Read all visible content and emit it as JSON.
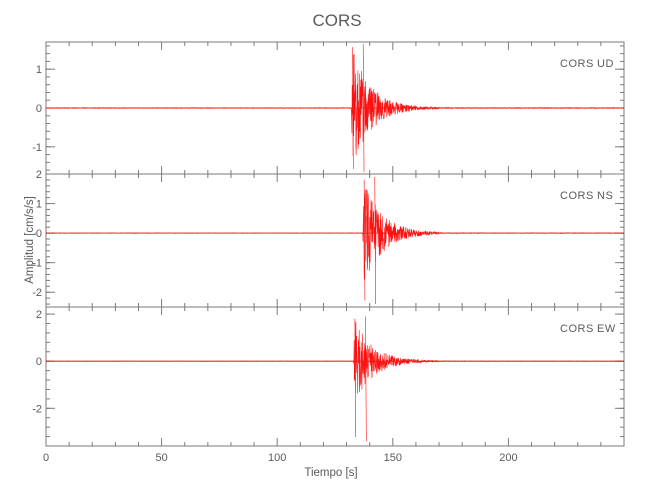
{
  "chart_data": {
    "type": "line",
    "title": "CORS",
    "xlabel": "Tiempo [s]",
    "ylabel": "Amplitud [cm/s/s]",
    "xlim": [
      0,
      250
    ],
    "x_ticks": [
      "0",
      "50",
      "100",
      "150",
      "200"
    ],
    "x_tick_values": [
      0,
      50,
      100,
      150,
      200
    ],
    "grid": false,
    "panels": [
      {
        "station": "CORS",
        "component": "UD",
        "ylim": [
          -1.7,
          1.7
        ],
        "y_ticks": [
          "-1",
          "0",
          "1"
        ],
        "y_tick_values": [
          -1,
          0,
          1
        ],
        "onset_s": 132,
        "peak_pos": 1.65,
        "peak_neg": -1.65,
        "coda_end_s": 170
      },
      {
        "station": "CORS",
        "component": "NS",
        "ylim": [
          -2.5,
          2.0
        ],
        "y_ticks": [
          "-2",
          "-1",
          "0",
          "1",
          "2"
        ],
        "y_tick_values": [
          -2,
          -1,
          0,
          1,
          2
        ],
        "onset_s": 137,
        "peak_pos": 1.9,
        "peak_neg": -2.4,
        "coda_end_s": 170
      },
      {
        "station": "CORS",
        "component": "EW",
        "ylim": [
          -3.6,
          2.3
        ],
        "y_ticks": [
          "-2",
          "0",
          "2"
        ],
        "y_tick_values": [
          -2,
          0,
          2
        ],
        "onset_s": 133,
        "peak_pos": 1.9,
        "peak_neg": -3.4,
        "coda_end_s": 170
      }
    ],
    "trace_color": "#ff1010"
  }
}
